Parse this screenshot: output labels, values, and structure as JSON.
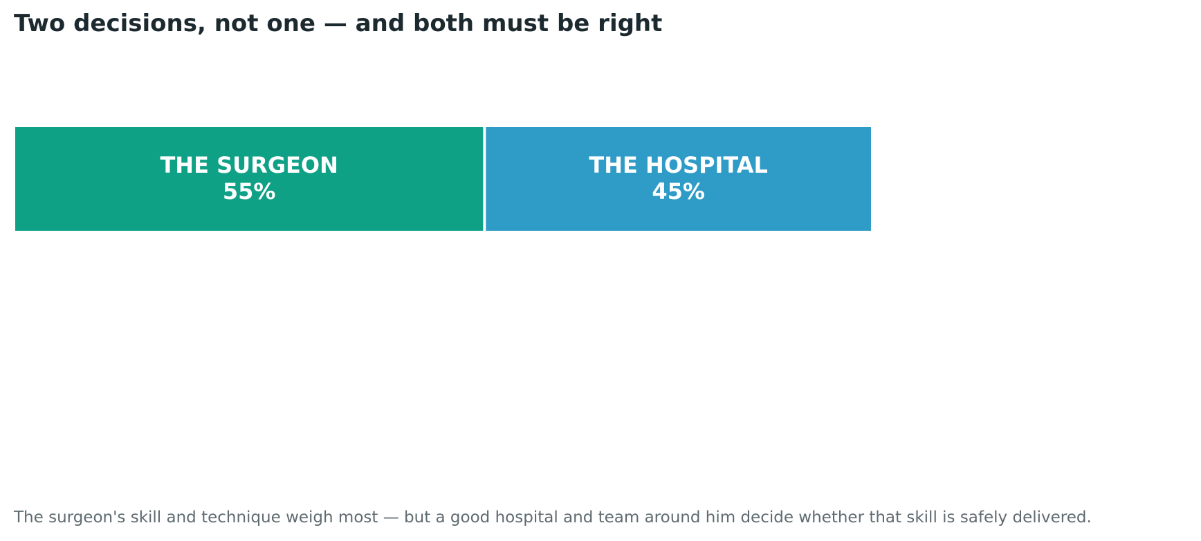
{
  "title": "Two decisions, not one — and both must be right",
  "footnote": "The surgeon's skill and technique weigh most — but a good hospital and team around him decide whether that skill is safely delivered.",
  "chart_data": {
    "type": "bar",
    "orientation": "horizontal-stacked",
    "categories": [
      "THE SURGEON",
      "THE HOSPITAL"
    ],
    "values": [
      55,
      45
    ],
    "unit": "%",
    "value_labels": [
      "55%",
      "45%"
    ],
    "colors": [
      "#0fa186",
      "#2f9bc7"
    ],
    "label_color": "#ffffff",
    "xlim": [
      0,
      100
    ],
    "grid": false,
    "legend": "none"
  }
}
